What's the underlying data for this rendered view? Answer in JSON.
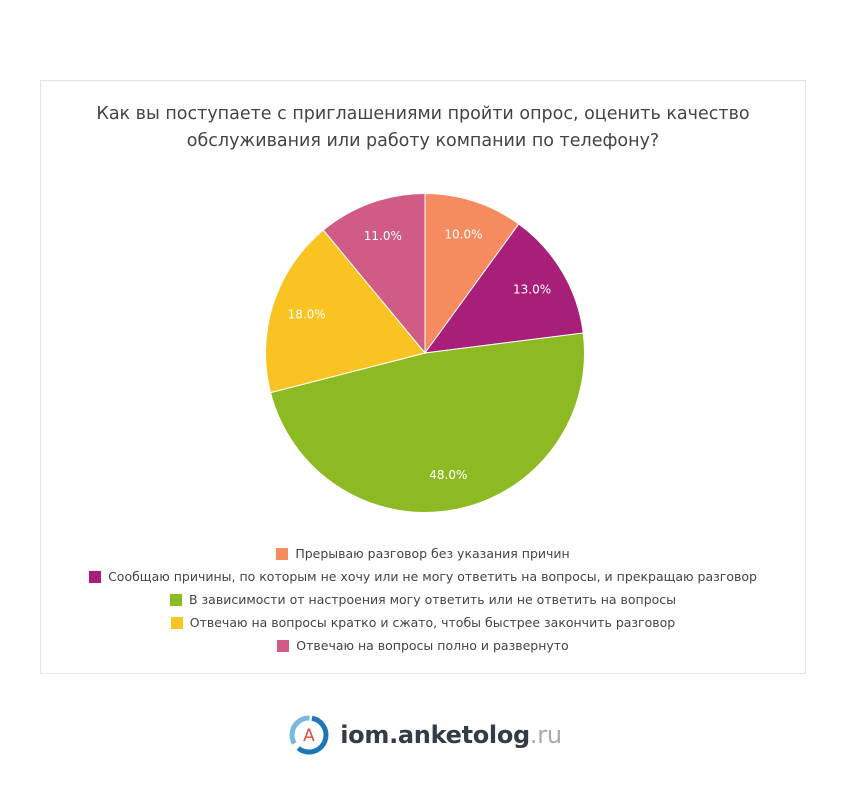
{
  "chart_data": {
    "type": "pie",
    "title": "Как вы поступаете с приглашениями пройти опрос, оценить качество обслуживания или работу компании по телефону?",
    "title_lines": [
      "Как вы поступаете с приглашениями пройти опрос, оценить качество",
      "обслуживания или работу компании по телефону?"
    ],
    "categories": [
      "Прерываю разговор без указания причин",
      "Сообщаю причины, по которым не хочу или не могу ответить на вопросы, и прекращаю разговор",
      "В зависимости от настроения могу ответить или не ответить на вопросы",
      "Отвечаю на вопросы кратко и сжато, чтобы быстрее закончить разговор",
      "Отвечаю на вопросы полно и развернуто"
    ],
    "values": [
      10.0,
      13.0,
      48.0,
      18.0,
      11.0
    ],
    "data_labels": [
      "10.0%",
      "13.0%",
      "48.0%",
      "18.0%",
      "11.0%"
    ],
    "colors": [
      "#f58b5f",
      "#a81f79",
      "#8dba22",
      "#f9c322",
      "#d05c85"
    ],
    "start_angle": "12 o'clock, clockwise",
    "legend_position": "bottom"
  },
  "brand": {
    "logo_letter": "A",
    "name": "iom.anketolog",
    "tld": ".ru",
    "logo_colors": [
      "#1e76b8",
      "#7ab8dd",
      "#e74c3c"
    ]
  }
}
